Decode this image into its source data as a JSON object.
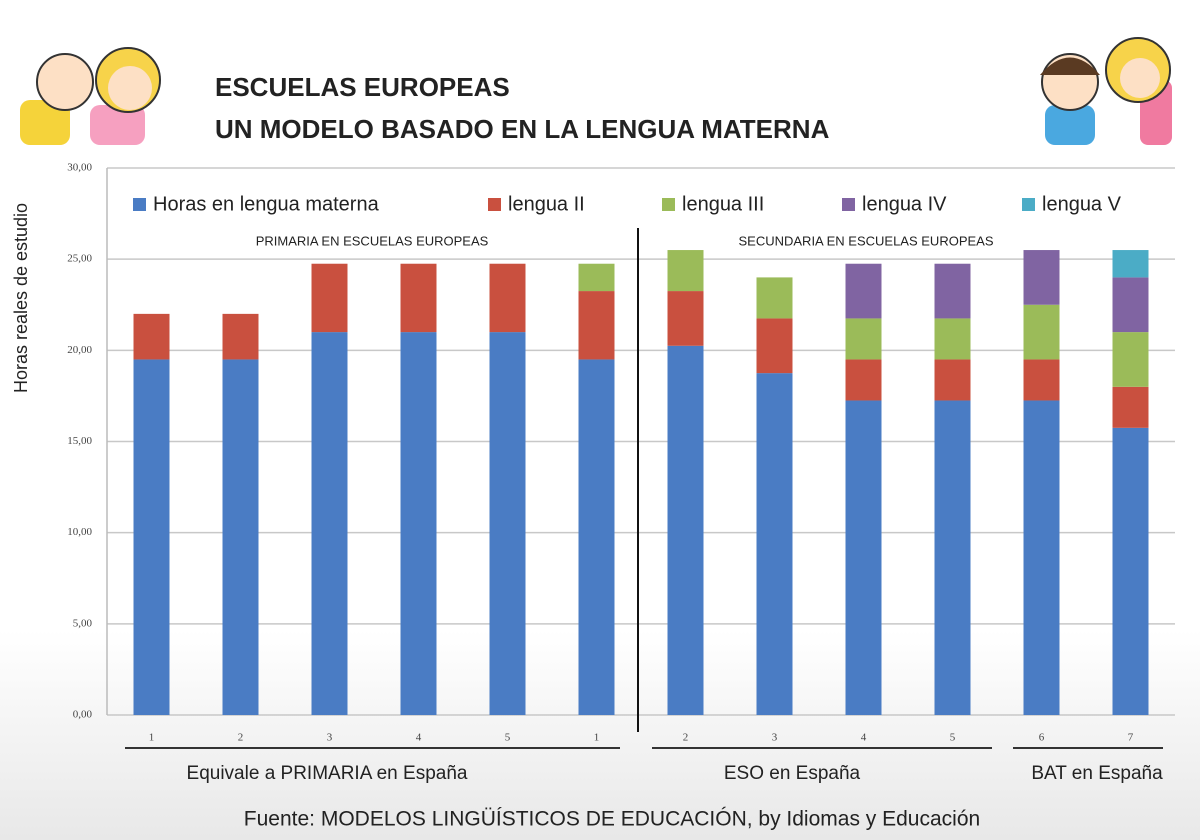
{
  "chart_data": {
    "type": "stacked_bar",
    "title": "ESCUELAS EUROPEAS",
    "subtitle": "UN MODELO BASADO EN LA LENGUA MATERNA",
    "ylabel": "Horas reales de estudio",
    "categories": [
      "1",
      "2",
      "3",
      "4",
      "5",
      "1",
      "2",
      "3",
      "4",
      "5",
      "6",
      "7"
    ],
    "series": [
      {
        "name": "Horas en lengua materna",
        "color": "#4a7cc4",
        "values": [
          19.5,
          19.5,
          21,
          21,
          21,
          19.5,
          20.25,
          18.75,
          17.25,
          17.25,
          17.25,
          15.75
        ]
      },
      {
        "name": "lengua II",
        "color": "#c9503f",
        "values": [
          2.5,
          2.5,
          3.75,
          3.75,
          3.75,
          3.75,
          3,
          3,
          2.25,
          2.25,
          2.25,
          2.25
        ]
      },
      {
        "name": "lengua III",
        "color": "#9bbb59",
        "values": [
          null,
          null,
          null,
          null,
          null,
          1.5,
          2.25,
          2.25,
          2.25,
          2.25,
          3,
          3
        ]
      },
      {
        "name": "lengua IV",
        "color": "#8064a2",
        "values": [
          null,
          null,
          null,
          null,
          null,
          null,
          null,
          null,
          3,
          3,
          3,
          3
        ]
      },
      {
        "name": "lengua V",
        "color": "#4bacc6",
        "values": [
          null,
          null,
          null,
          null,
          null,
          null,
          null,
          null,
          null,
          null,
          null,
          1.5
        ]
      }
    ],
    "ylim": [
      0,
      30
    ],
    "yticks": [
      {
        "value": 0,
        "label": "0,00"
      },
      {
        "value": 5,
        "label": "5,00"
      },
      {
        "value": 10,
        "label": "10,00"
      },
      {
        "value": 15,
        "label": "15,00"
      },
      {
        "value": 20,
        "label": "20,00"
      },
      {
        "value": 25,
        "label": "25,00"
      },
      {
        "value": 30,
        "label": "30,00"
      }
    ],
    "grid": true,
    "section_labels": [
      "PRIMARIA EN ESCUELAS EUROPEAS",
      "SECUNDARIA EN ESCUELAS EUROPEAS"
    ],
    "group_labels": [
      "Equivale a PRIMARIA en España",
      "ESO en España",
      "BAT en España"
    ],
    "source": "Fuente: MODELOS LINGÜÍSTICOS DE EDUCACIÓN, by Idiomas y Educación"
  }
}
